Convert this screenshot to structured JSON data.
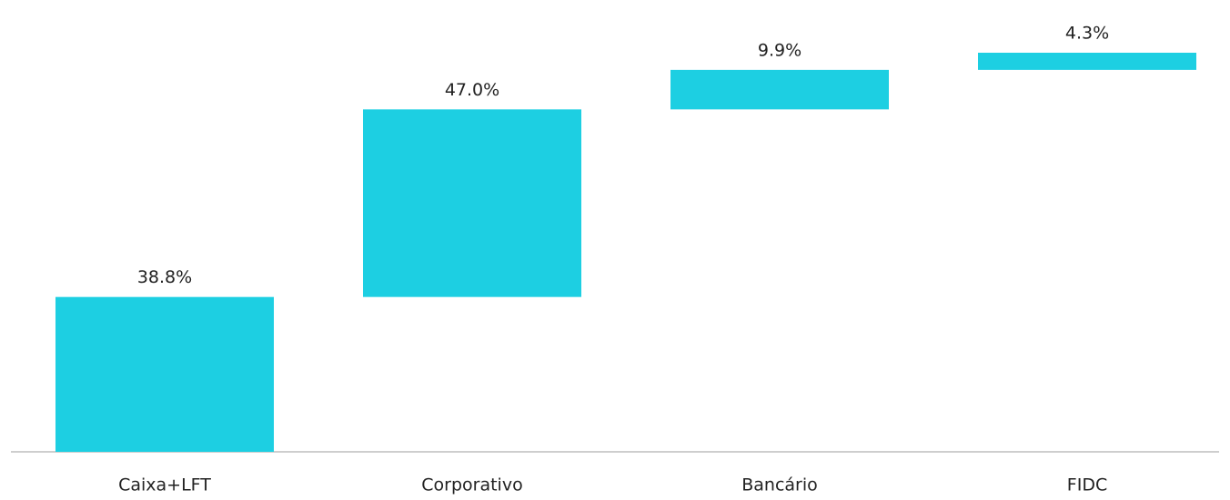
{
  "chart_data": {
    "type": "waterfall",
    "categories": [
      "Caixa+LFT",
      "Corporativo",
      "Bancário",
      "FIDC"
    ],
    "values": [
      38.8,
      47.0,
      9.9,
      4.3
    ],
    "value_labels": [
      "38.8%",
      "47.0%",
      "9.9%",
      "4.3%"
    ],
    "color": "#1dcfe2"
  }
}
